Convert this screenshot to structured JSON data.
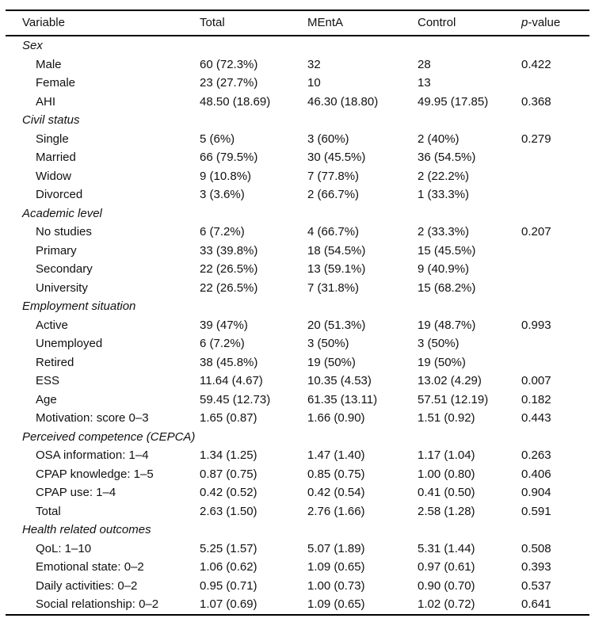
{
  "header": {
    "columns": [
      "Variable",
      "Total",
      "MEntA",
      "Control"
    ],
    "pvalue": {
      "italic": "p",
      "rest": "-value"
    }
  },
  "sections": [
    {
      "title": "Sex",
      "rows": [
        {
          "label": "Male",
          "total": "60 (72.3%)",
          "menta": "32",
          "control": "28",
          "p": "0.422"
        },
        {
          "label": "Female",
          "total": "23 (27.7%)",
          "menta": "10",
          "control": "13",
          "p": ""
        },
        {
          "label": "AHI",
          "total": "48.50 (18.69)",
          "menta": "46.30 (18.80)",
          "control": "49.95 (17.85)",
          "p": "0.368"
        }
      ]
    },
    {
      "title": "Civil status",
      "rows": [
        {
          "label": "Single",
          "total": "5 (6%)",
          "menta": "3 (60%)",
          "control": "2 (40%)",
          "p": "0.279"
        },
        {
          "label": "Married",
          "total": "66 (79.5%)",
          "menta": "30 (45.5%)",
          "control": "36 (54.5%)",
          "p": ""
        },
        {
          "label": "Widow",
          "total": "9 (10.8%)",
          "menta": "7 (77.8%)",
          "control": "2 (22.2%)",
          "p": ""
        },
        {
          "label": "Divorced",
          "total": "3 (3.6%)",
          "menta": "2 (66.7%)",
          "control": "1 (33.3%)",
          "p": ""
        }
      ]
    },
    {
      "title": "Academic level",
      "rows": [
        {
          "label": "No studies",
          "total": "6 (7.2%)",
          "menta": "4 (66.7%)",
          "control": "2 (33.3%)",
          "p": "0.207"
        },
        {
          "label": "Primary",
          "total": "33 (39.8%)",
          "menta": "18 (54.5%)",
          "control": "15 (45.5%)",
          "p": ""
        },
        {
          "label": "Secondary",
          "total": "22 (26.5%)",
          "menta": "13 (59.1%)",
          "control": "9 (40.9%)",
          "p": ""
        },
        {
          "label": "University",
          "total": "22 (26.5%)",
          "menta": "7 (31.8%)",
          "control": "15 (68.2%)",
          "p": ""
        }
      ]
    },
    {
      "title": "Employment situation",
      "rows": [
        {
          "label": "Active",
          "total": "39 (47%)",
          "menta": "20 (51.3%)",
          "control": "19 (48.7%)",
          "p": "0.993"
        },
        {
          "label": "Unemployed",
          "total": "6 (7.2%)",
          "menta": "3 (50%)",
          "control": "3 (50%)",
          "p": ""
        },
        {
          "label": "Retired",
          "total": "38 (45.8%)",
          "menta": "19 (50%)",
          "control": "19 (50%)",
          "p": ""
        },
        {
          "label": "ESS",
          "total": "11.64 (4.67)",
          "menta": "10.35 (4.53)",
          "control": "13.02 (4.29)",
          "p": "0.007"
        },
        {
          "label": "Age",
          "total": "59.45 (12.73)",
          "menta": "61.35 (13.11)",
          "control": "57.51 (12.19)",
          "p": "0.182"
        },
        {
          "label": "Motivation: score 0–3",
          "total": "1.65 (0.87)",
          "menta": "1.66 (0.90)",
          "control": "1.51 (0.92)",
          "p": "0.443"
        }
      ]
    },
    {
      "title": "Perceived competence (CEPCA)",
      "rows": [
        {
          "label": "OSA information: 1–4",
          "total": "1.34 (1.25)",
          "menta": "1.47 (1.40)",
          "control": "1.17 (1.04)",
          "p": "0.263"
        },
        {
          "label": "CPAP knowledge: 1–5",
          "total": "0.87 (0.75)",
          "menta": "0.85 (0.75)",
          "control": "1.00 (0.80)",
          "p": "0.406"
        },
        {
          "label": "CPAP use: 1–4",
          "total": "0.42 (0.52)",
          "menta": "0.42 (0.54)",
          "control": "0.41 (0.50)",
          "p": "0.904"
        },
        {
          "label": "Total",
          "total": "2.63 (1.50)",
          "menta": "2.76 (1.66)",
          "control": "2.58 (1.28)",
          "p": "0.591"
        }
      ]
    },
    {
      "title": "Health related outcomes",
      "rows": [
        {
          "label": "QoL: 1–10",
          "total": "5.25 (1.57)",
          "menta": "5.07 (1.89)",
          "control": "5.31 (1.44)",
          "p": "0.508"
        },
        {
          "label": "Emotional state: 0–2",
          "total": "1.06 (0.62)",
          "menta": "1.09 (0.65)",
          "control": "0.97 (0.61)",
          "p": "0.393"
        },
        {
          "label": "Daily activities: 0–2",
          "total": "0.95 (0.71)",
          "menta": "1.00 (0.73)",
          "control": "0.90 (0.70)",
          "p": "0.537"
        },
        {
          "label": "Social relationship: 0–2",
          "total": "1.07 (0.69)",
          "menta": "1.09 (0.65)",
          "control": "1.02 (0.72)",
          "p": "0.641"
        }
      ]
    }
  ]
}
